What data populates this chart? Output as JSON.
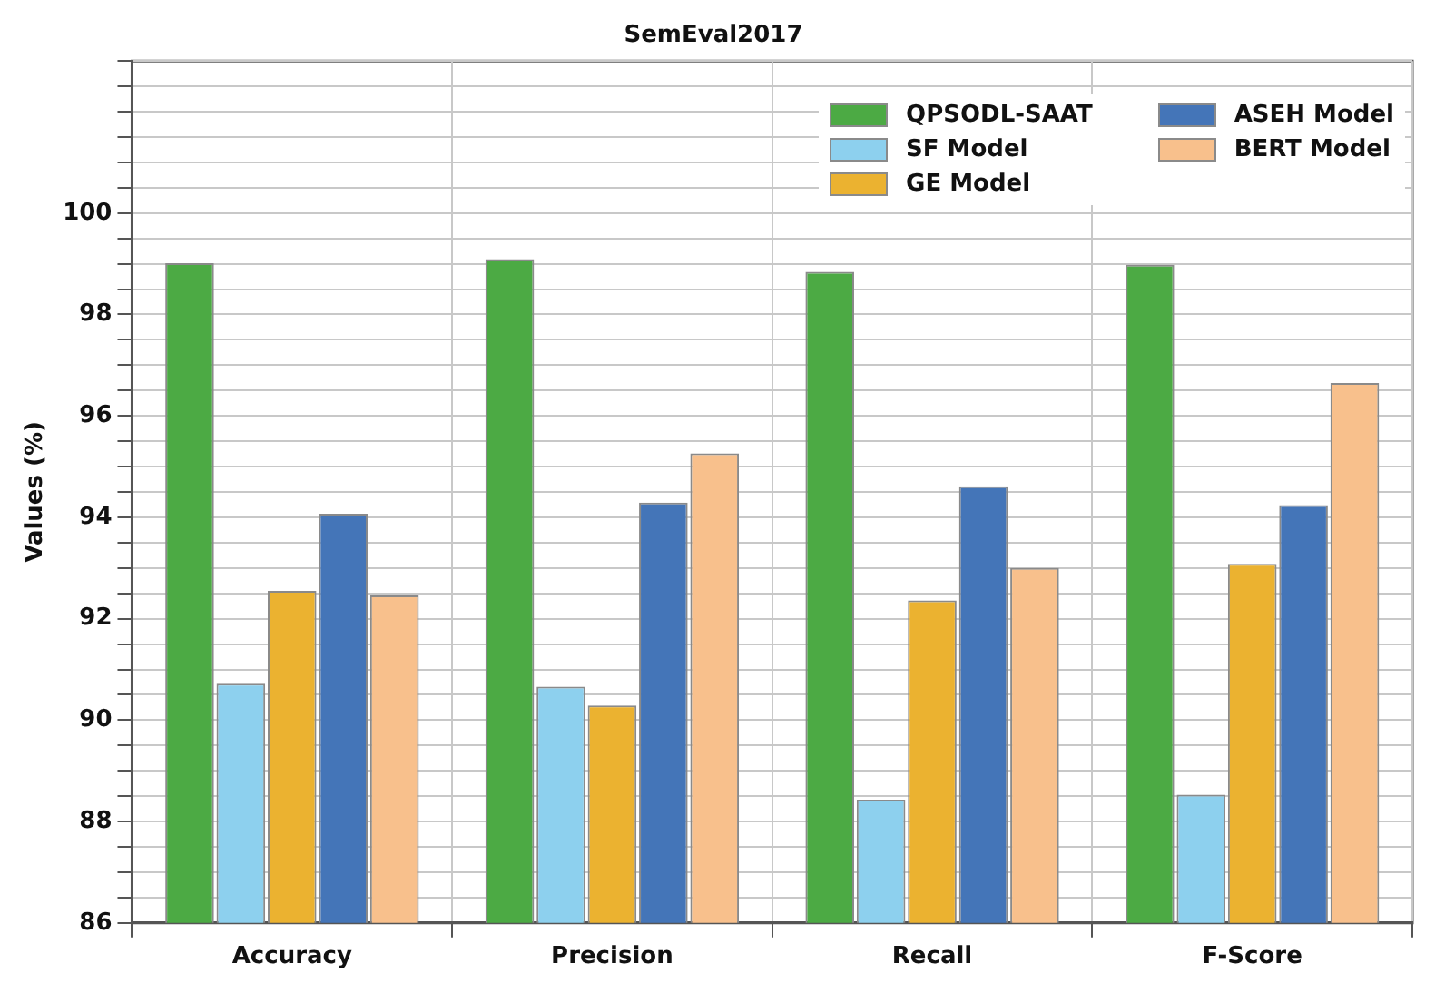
{
  "chart_data": {
    "type": "bar",
    "title": "SemEval2017",
    "ylabel": "Values (%)",
    "categories": [
      "Accuracy",
      "Precision",
      "Recall",
      "F-Score"
    ],
    "series": [
      {
        "name": "QPSODL-SAAT",
        "color": "#4caa44",
        "values": [
          99.01,
          99.09,
          98.84,
          98.98
        ]
      },
      {
        "name": "SF Model",
        "color": "#8dd0ee",
        "values": [
          90.72,
          90.66,
          88.43,
          88.53
        ]
      },
      {
        "name": "GE Model",
        "color": "#ebb230",
        "values": [
          92.55,
          90.29,
          92.36,
          93.08
        ]
      },
      {
        "name": "ASEH Model",
        "color": "#4475b8",
        "values": [
          94.07,
          94.29,
          94.61,
          94.24
        ]
      },
      {
        "name": "BERT Model",
        "color": "#f8c08c",
        "values": [
          92.46,
          95.26,
          93.0,
          96.65
        ]
      }
    ],
    "ylim": [
      86,
      103
    ],
    "yticks": [
      86,
      {
        "value": 86.5,
        "label": null
      },
      {
        "value": 87,
        "label": null
      },
      {
        "value": 87.5,
        "label": null
      },
      88,
      {
        "value": 88.5,
        "label": null
      },
      {
        "value": 89,
        "label": null
      },
      {
        "value": 89.5,
        "label": null
      },
      90,
      {
        "value": 90.5,
        "label": null
      },
      {
        "value": 91,
        "label": null
      },
      {
        "value": 91.5,
        "label": null
      },
      92,
      {
        "value": 92.5,
        "label": null
      },
      {
        "value": 93,
        "label": null
      },
      {
        "value": 93.5,
        "label": null
      },
      94,
      {
        "value": 94.5,
        "label": null
      },
      {
        "value": 95,
        "label": null
      },
      {
        "value": 95.5,
        "label": null
      },
      96,
      {
        "value": 96.5,
        "label": null
      },
      {
        "value": 97,
        "label": null
      },
      {
        "value": 97.5,
        "label": null
      },
      98,
      {
        "value": 98.5,
        "label": null
      },
      {
        "value": 99,
        "label": null
      },
      {
        "value": 99.5,
        "label": null
      },
      100,
      {
        "value": 100.5,
        "label": null
      },
      {
        "value": 101,
        "label": null
      },
      {
        "value": 101.5,
        "label": null
      },
      {
        "value": 102,
        "label": null
      },
      {
        "value": 102.5,
        "label": null
      },
      {
        "value": 103,
        "label": null
      }
    ],
    "grid": true,
    "legend": "top right"
  }
}
